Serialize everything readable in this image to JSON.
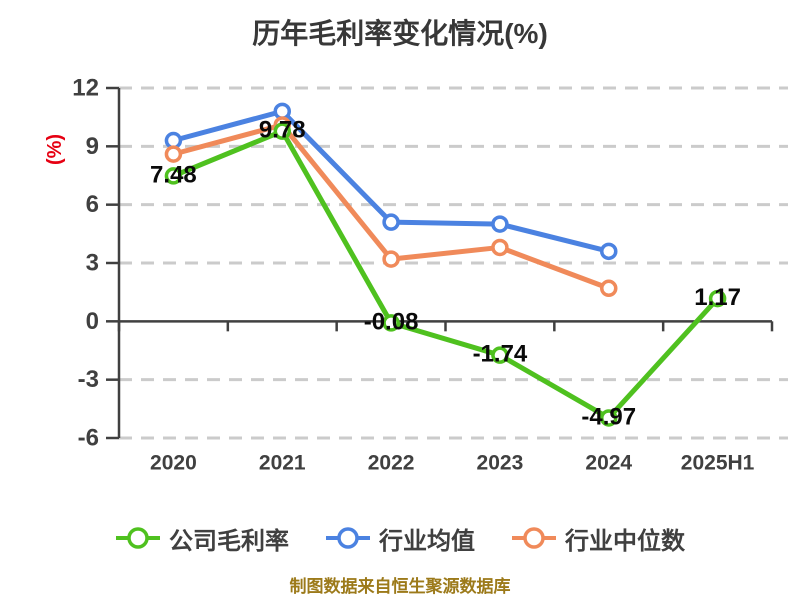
{
  "page": {
    "footer": "制图数据来自恒生聚源数据库"
  },
  "colors": {
    "title_text": "#383838",
    "axis_text": "#404040",
    "axis_line": "#404040",
    "grid_line": "#cbcbcb",
    "unit_label": "#e60012",
    "value_label": "#0a0a0a",
    "footer_text": "#9c7a1a",
    "marker_fill": "#ffffff"
  },
  "chart_data": {
    "type": "line",
    "title": "历年毛利率变化情况(%)",
    "ylabel": "(%)",
    "xlabel": "",
    "categories": [
      "2020",
      "2021",
      "2022",
      "2023",
      "2024",
      "2025H1"
    ],
    "ylim": [
      -6,
      12
    ],
    "yticks": [
      12,
      9,
      6,
      3,
      0,
      -3,
      -6
    ],
    "grid": "horizontal-dashed",
    "legend_position": "bottom",
    "series": [
      {
        "name": "公司毛利率",
        "color": "#4fc11f",
        "values": [
          7.48,
          9.78,
          -0.08,
          -1.74,
          -4.97,
          1.17
        ],
        "labels": [
          "7.48",
          "9.78",
          "-0.08",
          "-1.74",
          "-4.97",
          "1.17"
        ]
      },
      {
        "name": "行业均值",
        "color": "#4b82e1",
        "values": [
          9.3,
          10.8,
          5.1,
          5.0,
          3.6,
          null
        ],
        "labels": null
      },
      {
        "name": "行业中位数",
        "color": "#f08a5a",
        "values": [
          8.6,
          10.1,
          3.2,
          3.8,
          1.7,
          null
        ],
        "labels": null
      }
    ]
  }
}
